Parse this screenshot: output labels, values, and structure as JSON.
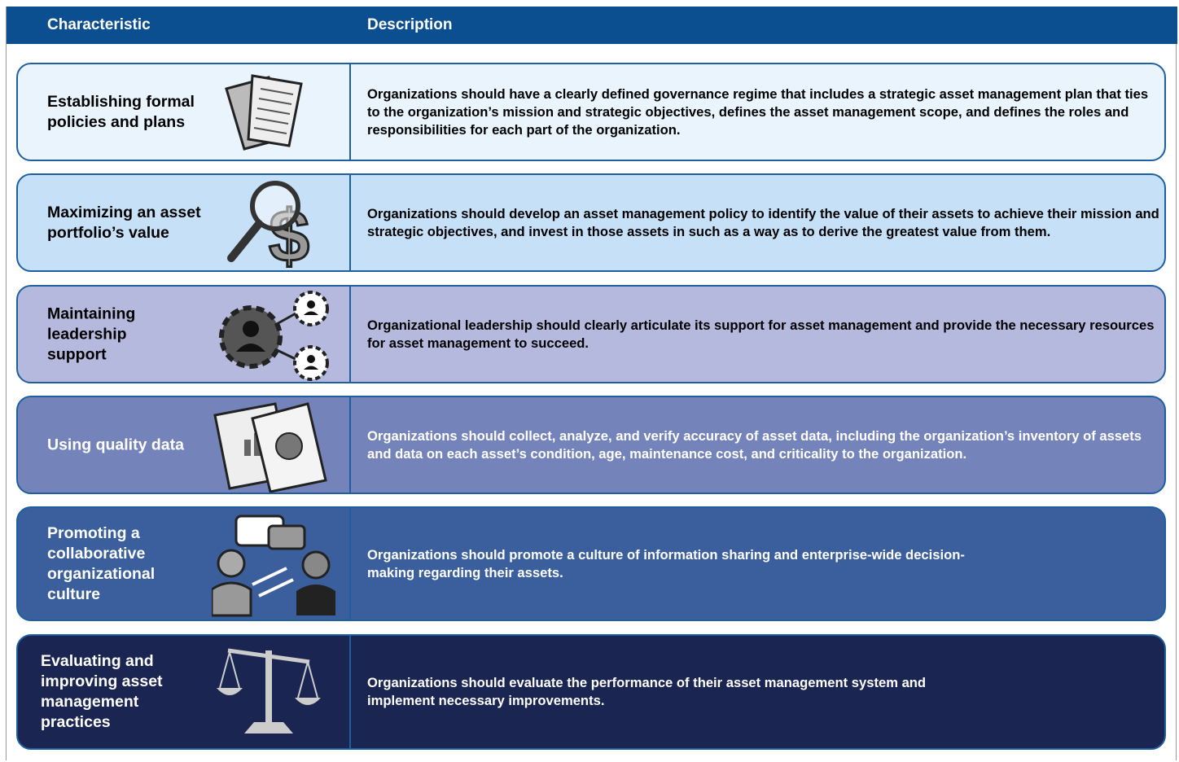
{
  "header": {
    "columns": [
      "Characteristic",
      "Description"
    ]
  },
  "rows": [
    {
      "characteristic": "Establishing formal policies and plans",
      "description": "Organizations should have a clearly defined governance regime that includes a strategic asset management plan that ties to the organization’s mission and strategic objectives, defines the asset management scope, and defines the roles and responsibilities for each part of the organization."
    },
    {
      "characteristic": "Maximizing an asset portfolio’s value",
      "description": "Organizations should develop an asset management policy to identify the value of their assets to achieve their mission and strategic objectives, and invest in those assets in such as a way as to derive the greatest value from them."
    },
    {
      "characteristic": "Maintaining leadership support",
      "description": "Organizational leadership should clearly articulate its support for asset management and provide the necessary resources for asset management to succeed."
    },
    {
      "characteristic": "Using quality data",
      "description": "Organizations should collect, analyze, and verify accuracy of asset data, including the organization’s inventory of assets and data on each asset’s condition, age, maintenance cost, and criticality to the organization."
    },
    {
      "characteristic": "Promoting a collaborative organizational culture",
      "description": "Organizations should promote a culture of information sharing and enterprise-wide decision-making regarding their assets."
    },
    {
      "characteristic": "Evaluating and improving asset management practices",
      "description": "Organizations should evaluate the performance of their asset management system and implement necessary improvements."
    }
  ]
}
